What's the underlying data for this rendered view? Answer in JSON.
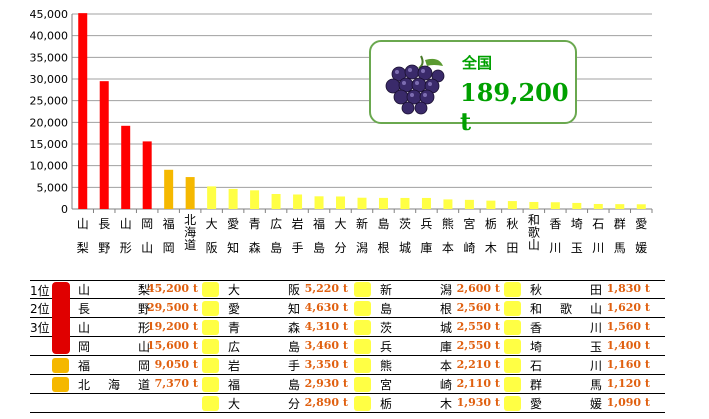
{
  "chart_data": {
    "type": "bar",
    "yticks": [
      "0",
      "5,000",
      "10,000",
      "15,000",
      "20,000",
      "25,000",
      "30,000",
      "35,000",
      "40,000",
      "45,000"
    ],
    "ylim": [
      0,
      45000
    ],
    "categories": [
      [
        "山",
        "梨"
      ],
      [
        "長",
        "野"
      ],
      [
        "山",
        "形"
      ],
      [
        "岡",
        "山"
      ],
      [
        "福",
        "岡"
      ],
      [
        "北",
        "海",
        "道"
      ],
      [
        "大",
        "阪"
      ],
      [
        "愛",
        "知"
      ],
      [
        "青",
        "森"
      ],
      [
        "広",
        "島"
      ],
      [
        "岩",
        "手"
      ],
      [
        "福",
        "島"
      ],
      [
        "大",
        "分"
      ],
      [
        "新",
        "潟"
      ],
      [
        "島",
        "根"
      ],
      [
        "茨",
        "城"
      ],
      [
        "兵",
        "庫"
      ],
      [
        "熊",
        "本"
      ],
      [
        "宮",
        "崎"
      ],
      [
        "栃",
        "木"
      ],
      [
        "秋",
        "田"
      ],
      [
        "和",
        "歌",
        "山"
      ],
      [
        "香",
        "川"
      ],
      [
        "埼",
        "玉"
      ],
      [
        "石",
        "川"
      ],
      [
        "群",
        "馬"
      ],
      [
        "愛",
        "媛"
      ]
    ],
    "values": [
      45200,
      29500,
      19200,
      15600,
      9050,
      7370,
      5220,
      4630,
      4310,
      3460,
      3350,
      2930,
      2890,
      2600,
      2560,
      2550,
      2550,
      2210,
      2110,
      1930,
      1830,
      1620,
      1560,
      1400,
      1160,
      1120,
      1090
    ],
    "colors": {
      "red": "#ff0000",
      "orange": "#f5b800",
      "yellow": "#ffff44"
    },
    "grid": true
  },
  "total": {
    "label": "全国",
    "value": "189,200 t"
  },
  "table": {
    "ranks": [
      "1位",
      "2位",
      "3位"
    ],
    "columns": [
      [
        [
          "山梨",
          "45,200 t"
        ],
        [
          "長野",
          "29,500 t"
        ],
        [
          "山形",
          "19,200 t"
        ],
        [
          "岡山",
          "15,600 t"
        ],
        [
          "福岡",
          "9,050 t"
        ],
        [
          "北海道",
          "7,370 t"
        ]
      ],
      [
        [
          "大阪",
          "5,220 t"
        ],
        [
          "愛知",
          "4,630 t"
        ],
        [
          "青森",
          "4,310 t"
        ],
        [
          "広島",
          "3,460 t"
        ],
        [
          "岩手",
          "3,350 t"
        ],
        [
          "福島",
          "2,930 t"
        ],
        [
          "大分",
          "2,890 t"
        ]
      ],
      [
        [
          "新潟",
          "2,600 t"
        ],
        [
          "島根",
          "2,560 t"
        ],
        [
          "茨城",
          "2,550 t"
        ],
        [
          "兵庫",
          "2,550 t"
        ],
        [
          "熊本",
          "2,210 t"
        ],
        [
          "宮崎",
          "2,110 t"
        ],
        [
          "栃木",
          "1,930 t"
        ]
      ],
      [
        [
          "秋田",
          "1,830 t"
        ],
        [
          "和歌山",
          "1,620 t"
        ],
        [
          "香川",
          "1,560 t"
        ],
        [
          "埼玉",
          "1,400 t"
        ],
        [
          "石川",
          "1,160 t"
        ],
        [
          "群馬",
          "1,120 t"
        ],
        [
          "愛媛",
          "1,090 t"
        ]
      ]
    ]
  }
}
